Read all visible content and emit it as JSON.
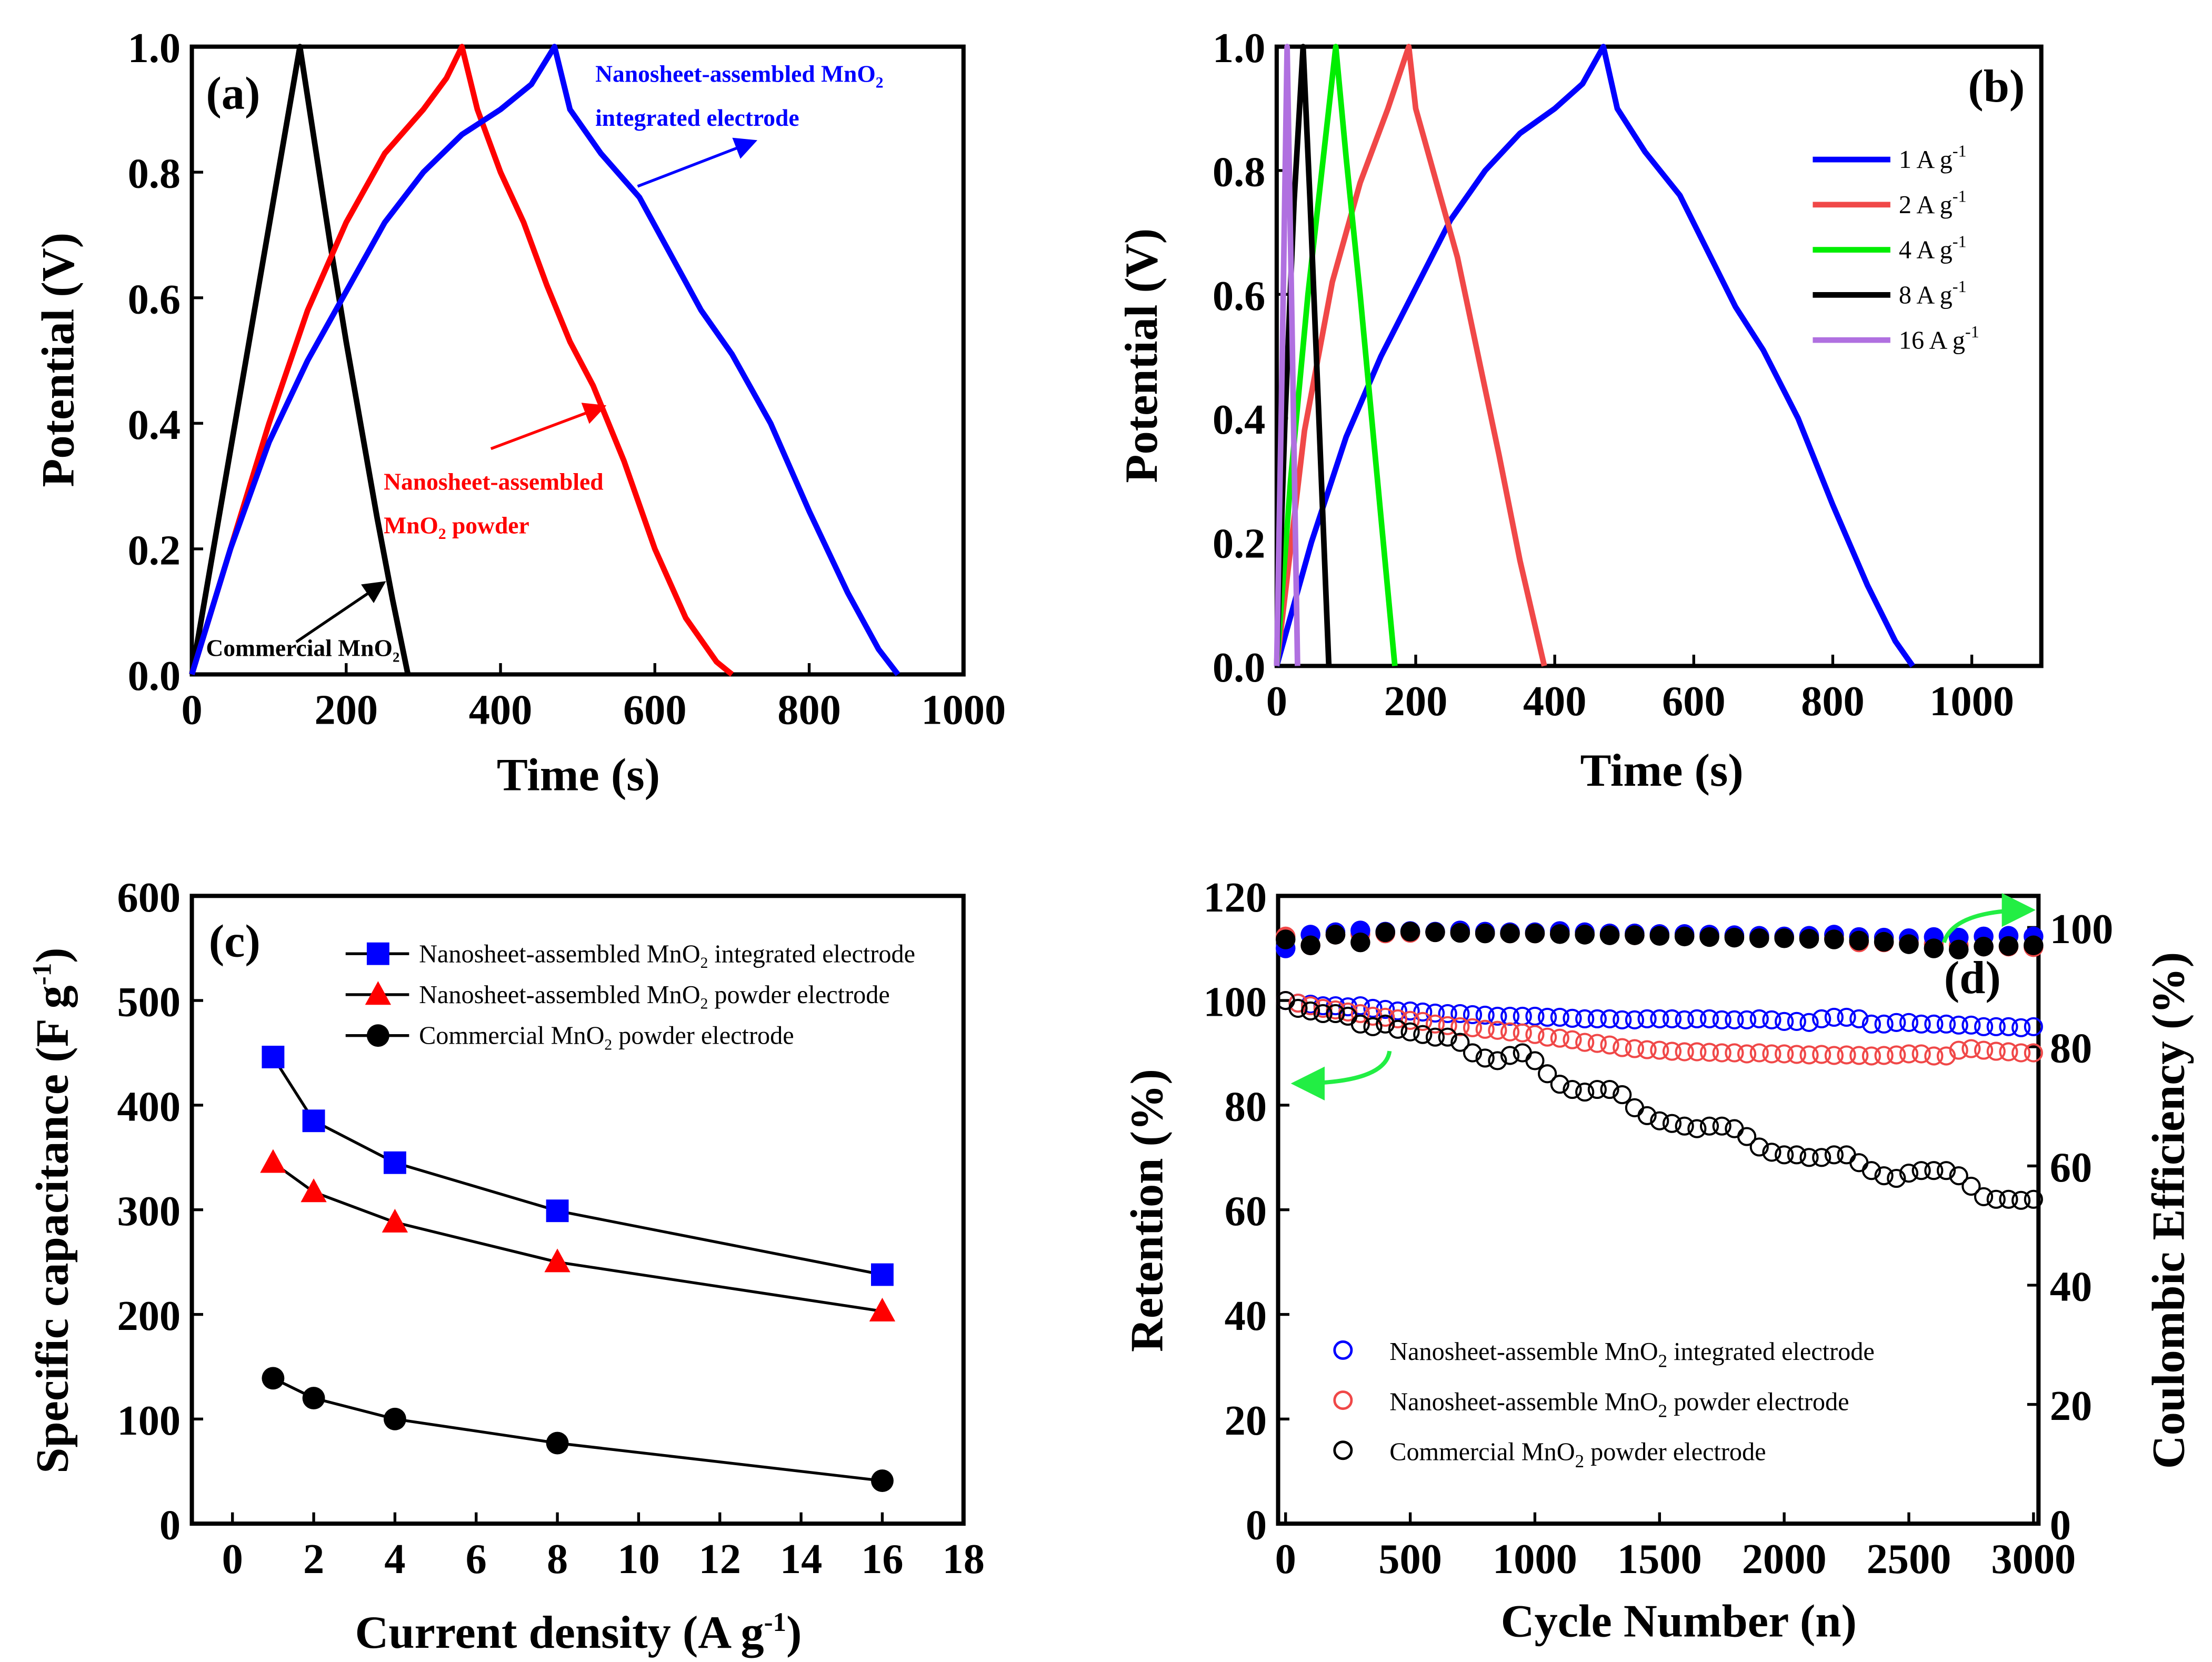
{
  "chart_data": [
    {
      "panel": "(a)",
      "type": "line",
      "xlabel": "Time (s)",
      "ylabel": "Potential (V)",
      "xlim": [
        0,
        1000
      ],
      "ylim": [
        0,
        1.0
      ],
      "xticks": [
        "0",
        "200",
        "400",
        "600",
        "800",
        "1000"
      ],
      "yticks": [
        "0.0",
        "0.2",
        "0.4",
        "0.6",
        "0.8",
        "1.0"
      ],
      "annotations": {
        "blue_1": "Nanosheet-assembled MnO",
        "blue_1_sub": "2",
        "blue_2": "integrated electrode",
        "red_1": "Nanosheet-assembled",
        "red_2": "MnO",
        "red_2_sub": "2",
        "red_2_post": " powder",
        "black": "Commercial MnO",
        "black_sub": "2"
      },
      "series": [
        {
          "name": "Commercial MnO2",
          "color": "#000000",
          "points": [
            [
              0,
              0
            ],
            [
              140,
              1.0
            ],
            [
              160,
              0.84
            ],
            [
              180,
              0.68
            ],
            [
              200,
              0.53
            ],
            [
              220,
              0.39
            ],
            [
              240,
              0.25
            ],
            [
              260,
              0.12
            ],
            [
              280,
              0
            ]
          ]
        },
        {
          "name": "Nanosheet-assembled MnO2 powder",
          "color": "#ff0000",
          "points": [
            [
              0,
              0
            ],
            [
              50,
              0.2
            ],
            [
              100,
              0.4
            ],
            [
              150,
              0.58
            ],
            [
              200,
              0.72
            ],
            [
              250,
              0.83
            ],
            [
              300,
              0.9
            ],
            [
              330,
              0.95
            ],
            [
              350,
              1.0
            ],
            [
              370,
              0.9
            ],
            [
              400,
              0.8
            ],
            [
              430,
              0.72
            ],
            [
              460,
              0.62
            ],
            [
              490,
              0.53
            ],
            [
              520,
              0.46
            ],
            [
              560,
              0.34
            ],
            [
              600,
              0.2
            ],
            [
              640,
              0.09
            ],
            [
              680,
              0.02
            ],
            [
              700,
              0
            ]
          ]
        },
        {
          "name": "Nanosheet-assembled MnO2 integrated electrode",
          "color": "#0000ff",
          "points": [
            [
              0,
              0
            ],
            [
              50,
              0.2
            ],
            [
              100,
              0.37
            ],
            [
              150,
              0.5
            ],
            [
              200,
              0.61
            ],
            [
              250,
              0.72
            ],
            [
              300,
              0.8
            ],
            [
              350,
              0.86
            ],
            [
              400,
              0.9
            ],
            [
              440,
              0.94
            ],
            [
              470,
              1.0
            ],
            [
              490,
              0.9
            ],
            [
              530,
              0.83
            ],
            [
              580,
              0.76
            ],
            [
              620,
              0.67
            ],
            [
              660,
              0.58
            ],
            [
              700,
              0.51
            ],
            [
              750,
              0.4
            ],
            [
              800,
              0.26
            ],
            [
              850,
              0.13
            ],
            [
              890,
              0.04
            ],
            [
              915,
              0
            ]
          ]
        }
      ]
    },
    {
      "panel": "(b)",
      "type": "line",
      "xlabel": "Time (s)",
      "ylabel": "Potential (V)",
      "xlim": [
        0,
        1100
      ],
      "ylim": [
        0,
        1.0
      ],
      "xticks": [
        "0",
        "200",
        "400",
        "600",
        "800",
        "1000"
      ],
      "yticks": [
        "0.0",
        "0.2",
        "0.4",
        "0.6",
        "0.8",
        "1.0"
      ],
      "legend": "top-right",
      "series": [
        {
          "name": "1 A g",
          "sup": "-1",
          "color": "#0000ff",
          "points": [
            [
              0,
              0
            ],
            [
              50,
              0.2
            ],
            [
              100,
              0.37
            ],
            [
              150,
              0.5
            ],
            [
              200,
              0.61
            ],
            [
              250,
              0.72
            ],
            [
              300,
              0.8
            ],
            [
              350,
              0.86
            ],
            [
              400,
              0.9
            ],
            [
              440,
              0.94
            ],
            [
              470,
              1.0
            ],
            [
              490,
              0.9
            ],
            [
              530,
              0.83
            ],
            [
              580,
              0.76
            ],
            [
              620,
              0.67
            ],
            [
              660,
              0.58
            ],
            [
              700,
              0.51
            ],
            [
              750,
              0.4
            ],
            [
              800,
              0.26
            ],
            [
              850,
              0.13
            ],
            [
              890,
              0.04
            ],
            [
              915,
              0
            ]
          ]
        },
        {
          "name": "2 A g",
          "sup": "-1",
          "color": "#f04848",
          "points": [
            [
              0,
              0
            ],
            [
              40,
              0.38
            ],
            [
              80,
              0.62
            ],
            [
              120,
              0.78
            ],
            [
              160,
              0.9
            ],
            [
              190,
              1.0
            ],
            [
              200,
              0.9
            ],
            [
              230,
              0.78
            ],
            [
              260,
              0.66
            ],
            [
              290,
              0.5
            ],
            [
              320,
              0.34
            ],
            [
              350,
              0.17
            ],
            [
              385,
              0
            ]
          ]
        },
        {
          "name": "4 A g",
          "sup": "-1",
          "color": "#00ee00",
          "points": [
            [
              0,
              0
            ],
            [
              20,
              0.3
            ],
            [
              45,
              0.6
            ],
            [
              70,
              0.85
            ],
            [
              85,
              1.0
            ],
            [
              100,
              0.82
            ],
            [
              120,
              0.6
            ],
            [
              145,
              0.3
            ],
            [
              170,
              0
            ]
          ]
        },
        {
          "name": "8 A g",
          "sup": "-1",
          "color": "#000000",
          "points": [
            [
              0,
              0
            ],
            [
              12,
              0.4
            ],
            [
              25,
              0.75
            ],
            [
              38,
              1.0
            ],
            [
              48,
              0.75
            ],
            [
              60,
              0.42
            ],
            [
              75,
              0
            ]
          ]
        },
        {
          "name": "16 A g",
          "sup": "-1",
          "color": "#b070e0",
          "points": [
            [
              0,
              0
            ],
            [
              8,
              0.5
            ],
            [
              15,
              1.0
            ],
            [
              22,
              0.55
            ],
            [
              30,
              0
            ]
          ]
        }
      ]
    },
    {
      "panel": "(c)",
      "type": "line",
      "xlabel": "Current density (A g",
      "xlabel_sup": "-1",
      "xlabel_post": ")",
      "ylabel": "Specific capacitance (F g",
      "ylabel_sup": "-1",
      "ylabel_post": ")",
      "xlim": [
        -1,
        18
      ],
      "ylim": [
        0,
        600
      ],
      "xticks": [
        "0",
        "2",
        "4",
        "6",
        "8",
        "10",
        "12",
        "14",
        "16",
        "18"
      ],
      "yticks": [
        "0",
        "100",
        "200",
        "300",
        "400",
        "500",
        "600"
      ],
      "legend": "top-right",
      "x": [
        1,
        2,
        4,
        8,
        16
      ],
      "series": [
        {
          "name": "Nanosheet-assembled MnO",
          "sub": "2",
          "post": " integrated electrode",
          "marker": "square",
          "color": "#0000ff",
          "values": [
            446,
            385,
            345,
            299,
            238
          ]
        },
        {
          "name": "Nanosheet-assembled MnO",
          "sub": "2",
          "post": " powder electrode",
          "marker": "triangle",
          "color": "#ff0000",
          "values": [
            345,
            317,
            288,
            250,
            203
          ]
        },
        {
          "name": "Commercial MnO",
          "sub": "2",
          "post": " powder electrode",
          "marker": "circle",
          "color": "#000000",
          "values": [
            139,
            120,
            100,
            77,
            41
          ]
        }
      ]
    },
    {
      "panel": "(d)",
      "type": "scatter",
      "xlabel": "Cycle Number (n)",
      "ylabel": "Retention (%)",
      "ylabel_right": "Coulombic Efficiency (%)",
      "xlim": [
        -30,
        3020
      ],
      "ylim": [
        0,
        120
      ],
      "ylim_right": [
        0,
        105.3
      ],
      "xticks": [
        "0",
        "500",
        "1000",
        "1500",
        "2000",
        "2500",
        "3000"
      ],
      "yticks": [
        "0",
        "20",
        "40",
        "60",
        "80",
        "100",
        "120"
      ],
      "yticks_right": [
        "0",
        "20",
        "40",
        "60",
        "80",
        "100"
      ],
      "legend": "bottom-left",
      "retention_x_step": 50,
      "ce_x_step": 100,
      "series": [
        {
          "name": "Nanosheet-assemble MnO",
          "sub": "2",
          "post": " integrated electrode",
          "color": "#0000ff",
          "retention": [
            100,
            99.5,
            99.3,
            99,
            99,
            98.8,
            99,
            98.5,
            98.3,
            98,
            98,
            97.8,
            97.6,
            97.5,
            97.5,
            97.3,
            97.2,
            97,
            97,
            97,
            97,
            96.8,
            96.8,
            96.6,
            96.5,
            96.5,
            96.5,
            96.3,
            96.3,
            96.5,
            96.5,
            96.5,
            96.3,
            96.5,
            96.5,
            96.3,
            96.3,
            96.3,
            96.5,
            96.3,
            96,
            96,
            95.8,
            96.5,
            96.8,
            96.8,
            96.5,
            95.5,
            95.5,
            95.8,
            95.8,
            95.5,
            95.5,
            95.5,
            95.3,
            95.3,
            95,
            95,
            95,
            94.8,
            95
          ],
          "ce": [
            96.5,
            98.8,
            99.2,
            99.5,
            99.3,
            99.4,
            99.3,
            99.5,
            99.3,
            99.2,
            99.2,
            99.4,
            99.2,
            99,
            99,
            98.9,
            98.9,
            98.8,
            98.7,
            98.6,
            98.5,
            98.6,
            98.8,
            98.4,
            98.3,
            98.2,
            98.4,
            98.3,
            98.5,
            98.6,
            98.5
          ]
        },
        {
          "name": "Nanosheet-assemble MnO",
          "sub": "2",
          "post": " powder electrode",
          "color": "#f04848",
          "retention": [
            100,
            99.5,
            99,
            98.5,
            98.2,
            97.8,
            97.5,
            97,
            96.8,
            96.5,
            96.2,
            96,
            95.5,
            95.2,
            95,
            94.8,
            94.5,
            94.3,
            94,
            93.8,
            93.5,
            93,
            92.8,
            92.5,
            92,
            91.8,
            91.5,
            91,
            90.8,
            90.6,
            90.5,
            90.3,
            90.2,
            90.2,
            90.1,
            90,
            90,
            89.8,
            90,
            89.8,
            89.8,
            89.7,
            89.6,
            89.7,
            89.5,
            89.6,
            89.5,
            89.4,
            89.5,
            89.6,
            89.8,
            89.8,
            89.4,
            89.4,
            90.5,
            90.8,
            90.5,
            90.3,
            90.2,
            90,
            90
          ],
          "ce": [
            98.5,
            97,
            98.8,
            98.9,
            99,
            99.1,
            99.2,
            99.2,
            99.1,
            99,
            99,
            99,
            98.9,
            98.8,
            98.7,
            98.7,
            98.6,
            98.5,
            98.5,
            98.4,
            98.4,
            98.3,
            98.2,
            97.5,
            97.5,
            97.5,
            97.2,
            97,
            96.8,
            96.8,
            96.7
          ]
        },
        {
          "name": "Commercial MnO",
          "sub": "2",
          "post": " powder electrode",
          "color": "#000000",
          "retention": [
            100,
            98.5,
            98,
            97.5,
            97.5,
            97,
            95.5,
            95,
            95.5,
            94.5,
            94,
            93.5,
            93,
            93,
            92,
            90,
            89,
            88.5,
            89.5,
            90,
            88.5,
            86,
            84,
            83,
            82.5,
            83,
            83,
            82,
            79.5,
            78,
            77,
            76.5,
            76,
            75.5,
            76,
            76,
            75.5,
            74,
            72,
            71,
            70.5,
            70.5,
            70,
            70,
            70.5,
            70.5,
            69,
            67.5,
            66.5,
            66,
            67,
            67.5,
            67.5,
            67.5,
            66.5,
            64.5,
            62.5,
            62,
            62,
            61.8,
            62
          ],
          "ce": [
            98,
            97,
            98.8,
            97.5,
            99.2,
            99.3,
            99.2,
            99.1,
            99,
            99,
            99,
            98.9,
            98.8,
            98.7,
            98.7,
            98.6,
            98.5,
            98.4,
            98.3,
            98.2,
            98.2,
            98.1,
            98,
            97.8,
            97.6,
            97.2,
            96.5,
            96.3,
            96.8,
            96.9,
            97
          ]
        }
      ]
    }
  ]
}
